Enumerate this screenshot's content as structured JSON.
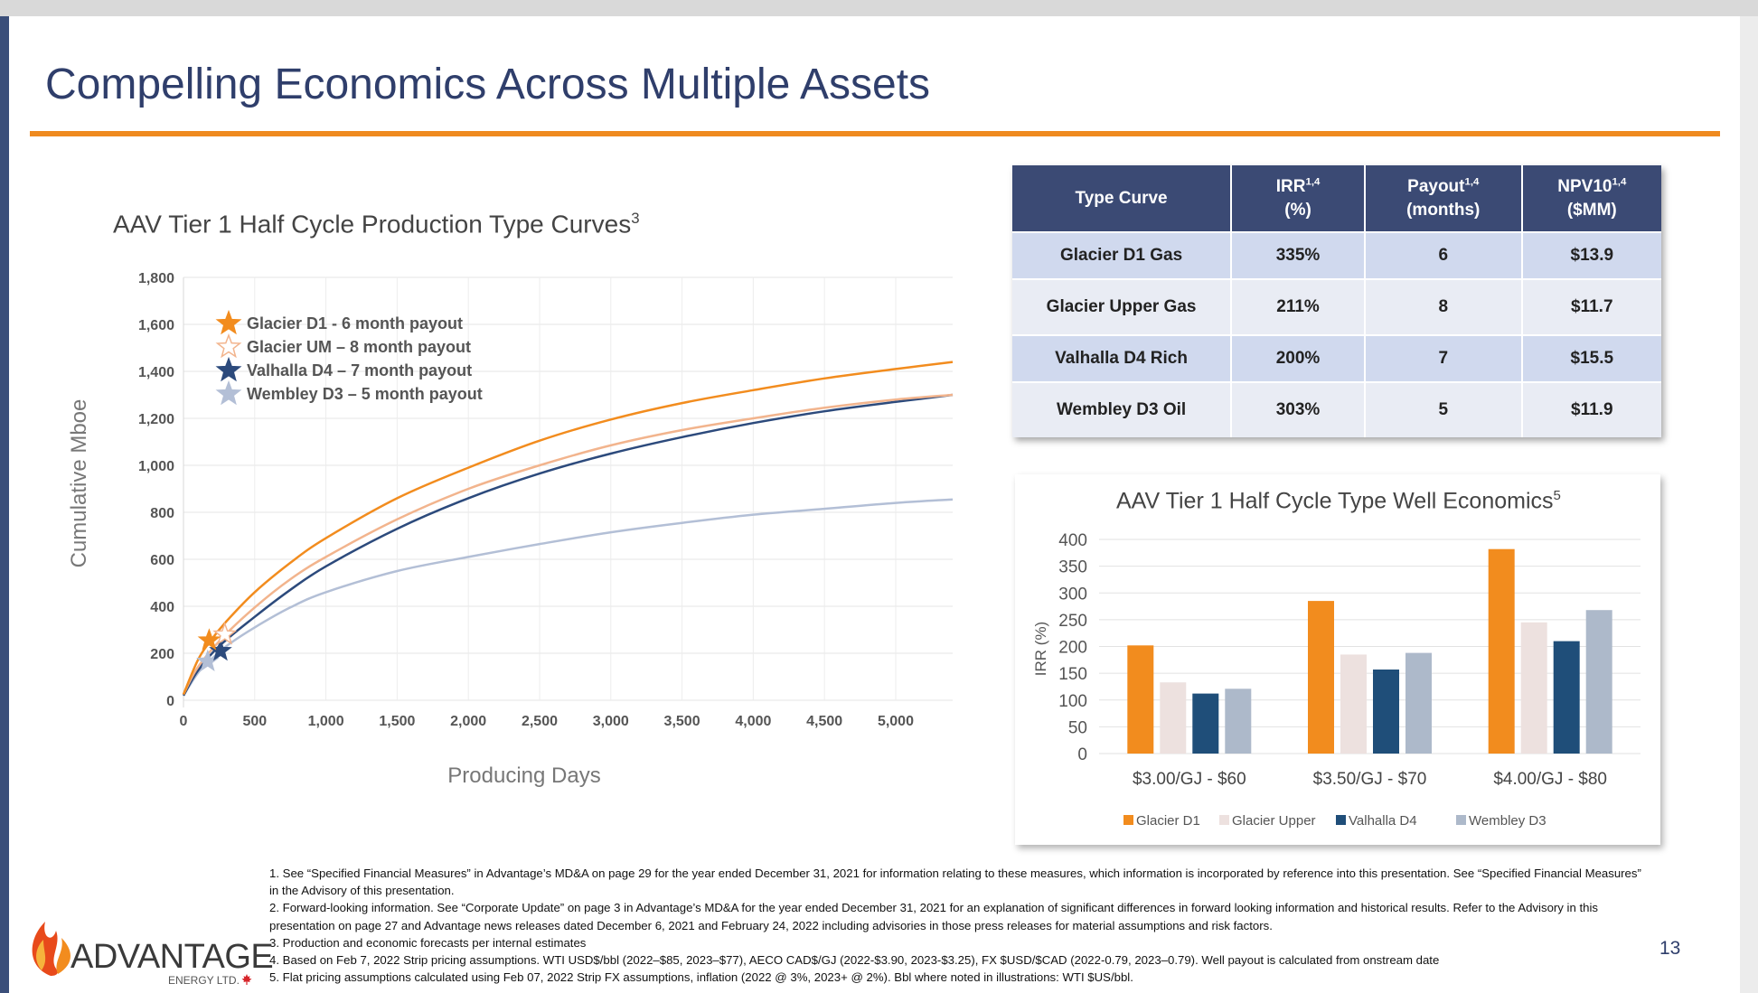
{
  "slide": {
    "title": "Compelling Economics Across Multiple Assets",
    "page_number": "13"
  },
  "left_chart": {
    "title": "AAV Tier 1 Half Cycle Production Type Curves",
    "title_sup": "3",
    "legend": [
      {
        "label": "Glacier D1 - 6 month payout",
        "color": "#f28c1e",
        "icon": "star-filled-icon"
      },
      {
        "label": "Glacier UM – 8 month payout",
        "color": "#f2b48d",
        "icon": "star-outline-icon"
      },
      {
        "label": "Valhalla D4 –  7 month payout",
        "color": "#2c4a7c",
        "icon": "star-filled-icon"
      },
      {
        "label": "Wembley D3 – 5 month payout",
        "color": "#b3bfd6",
        "icon": "star-filled-icon"
      }
    ]
  },
  "table": {
    "headers": [
      {
        "main": "Type Curve",
        "sup": "",
        "sub": ""
      },
      {
        "main": "IRR",
        "sup": "1,4",
        "sub": "(%)"
      },
      {
        "main": "Payout",
        "sup": "1,4",
        "sub": "(months)"
      },
      {
        "main": "NPV10",
        "sup": "1,4",
        "sub": "($MM)"
      }
    ],
    "rows": [
      [
        "Glacier D1 Gas",
        "335%",
        "6",
        "$13.9"
      ],
      [
        "Glacier Upper Gas",
        "211%",
        "8",
        "$11.7"
      ],
      [
        "Valhalla D4 Rich",
        "200%",
        "7",
        "$15.5"
      ],
      [
        "Wembley D3 Oil",
        "303%",
        "5",
        "$11.9"
      ]
    ]
  },
  "right_chart": {
    "title": "AAV Tier 1 Half Cycle Type Well Economics",
    "title_sup": "5"
  },
  "chart_data": [
    {
      "type": "line",
      "title": "AAV Tier 1 Half Cycle Production Type Curves",
      "xlabel": "Producing Days",
      "ylabel": "Cumulative Mboe",
      "xlim": [
        0,
        5400
      ],
      "ylim": [
        0,
        1800
      ],
      "x_ticks": [
        "0",
        "500",
        "1,000",
        "1,500",
        "2,000",
        "2,500",
        "3,000",
        "3,500",
        "4,000",
        "4,500",
        "5,000"
      ],
      "x_tick_values": [
        0,
        500,
        1000,
        1500,
        2000,
        2500,
        3000,
        3500,
        4000,
        4500,
        5000
      ],
      "y_ticks": [
        "0",
        "200",
        "400",
        "600",
        "800",
        "1,000",
        "1,200",
        "1,400",
        "1,600",
        "1,800"
      ],
      "y_tick_values": [
        0,
        200,
        400,
        600,
        800,
        1000,
        1200,
        1400,
        1600,
        1800
      ],
      "grid": true,
      "legend_position": "top-left",
      "series": [
        {
          "name": "Glacier D1 - 6 month payout",
          "color": "#f28c1e",
          "x": [
            0,
            100,
            180,
            300,
            500,
            750,
            1000,
            1500,
            2000,
            2500,
            3000,
            3500,
            4000,
            4500,
            5000,
            5400
          ],
          "y": [
            25,
            170,
            245,
            335,
            460,
            585,
            690,
            860,
            990,
            1105,
            1195,
            1265,
            1320,
            1370,
            1410,
            1440
          ],
          "payout_marker": {
            "x": 180,
            "y": 255,
            "style": "filled"
          }
        },
        {
          "name": "Glacier UM – 8 month payout",
          "color": "#f2b48d",
          "x": [
            0,
            100,
            280,
            500,
            750,
            1000,
            1500,
            2000,
            2500,
            3000,
            3500,
            4000,
            4500,
            5000,
            5400
          ],
          "y": [
            25,
            140,
            270,
            395,
            515,
            610,
            770,
            900,
            1000,
            1085,
            1150,
            1200,
            1245,
            1280,
            1300
          ],
          "payout_marker": {
            "x": 290,
            "y": 280,
            "style": "outline"
          }
        },
        {
          "name": "Valhalla D4 –  7 month payout",
          "color": "#2c4a7c",
          "x": [
            0,
            100,
            250,
            500,
            750,
            1000,
            1500,
            2000,
            2500,
            3000,
            3500,
            4000,
            4500,
            5000,
            5400
          ],
          "y": [
            20,
            125,
            230,
            355,
            470,
            570,
            730,
            860,
            965,
            1050,
            1120,
            1180,
            1230,
            1270,
            1300
          ],
          "payout_marker": {
            "x": 260,
            "y": 210,
            "style": "filled"
          }
        },
        {
          "name": "Wembley D3 – 5 month payout",
          "color": "#b3bfd6",
          "x": [
            0,
            100,
            180,
            300,
            500,
            750,
            1000,
            1500,
            2000,
            2500,
            3000,
            3500,
            4000,
            4500,
            5000,
            5400
          ],
          "y": [
            20,
            115,
            165,
            230,
            310,
            395,
            460,
            550,
            610,
            665,
            715,
            755,
            790,
            815,
            840,
            855
          ],
          "payout_marker": {
            "x": 170,
            "y": 165,
            "style": "filled"
          }
        }
      ]
    },
    {
      "type": "bar",
      "title": "AAV Tier 1 Half Cycle Type Well Economics",
      "ylabel": "IRR (%)",
      "ylim": [
        0,
        400
      ],
      "y_ticks": [
        "0",
        "50",
        "100",
        "150",
        "200",
        "250",
        "300",
        "350",
        "400"
      ],
      "y_tick_values": [
        0,
        50,
        100,
        150,
        200,
        250,
        300,
        350,
        400
      ],
      "grid": true,
      "legend_position": "bottom",
      "categories": [
        "$3.00/GJ - $60",
        "$3.50/GJ - $70",
        "$4.00/GJ - $80"
      ],
      "series": [
        {
          "name": "Glacier D1",
          "color": "#f28c1e",
          "values": [
            202,
            285,
            382
          ]
        },
        {
          "name": "Glacier Upper",
          "color": "#ede1df",
          "values": [
            133,
            185,
            245
          ]
        },
        {
          "name": "Valhalla D4",
          "color": "#1f4e79",
          "values": [
            112,
            157,
            210
          ]
        },
        {
          "name": "Wembley D3",
          "color": "#adb9ca",
          "values": [
            121,
            188,
            268
          ]
        }
      ]
    }
  ],
  "footnotes": [
    "1. See “Specified Financial Measures” in Advantage’s MD&A on page 29 for the year ended December 31, 2021 for information relating to these measures, which information is incorporated by reference into this presentation. See “Specified Financial Measures” in the Advisory of this presentation.",
    "2. Forward-looking information. See “Corporate Update” on page 3 in Advantage’s MD&A for the year ended December 31, 2021 for an explanation of significant differences in forward looking information and historical results. Refer to the Advisory in this presentation on page 27 and Advantage news releases dated December 6, 2021 and February 24, 2022 including advisories in those press releases for material assumptions and risk factors.",
    "3. Production and economic forecasts per internal estimates",
    "4. Based on Feb 7, 2022 Strip pricing assumptions. WTI USD$/bbl (2022–$85, 2023–$77), AECO CAD$/GJ (2022-$3.90, 2023-$3.25), FX $USD/$CAD (2022-0.79, 2023–0.79). Well payout is calculated from onstream date",
    "5. Flat pricing assumptions calculated using Feb 07, 2022 Strip FX assumptions, inflation (2022 @ 3%, 2023+ @ 2%). Bbl where noted in illustrations: WTI $US/bbl."
  ],
  "logo": {
    "name": "ADVANTAGE",
    "sub": "ENERGY LTD."
  }
}
